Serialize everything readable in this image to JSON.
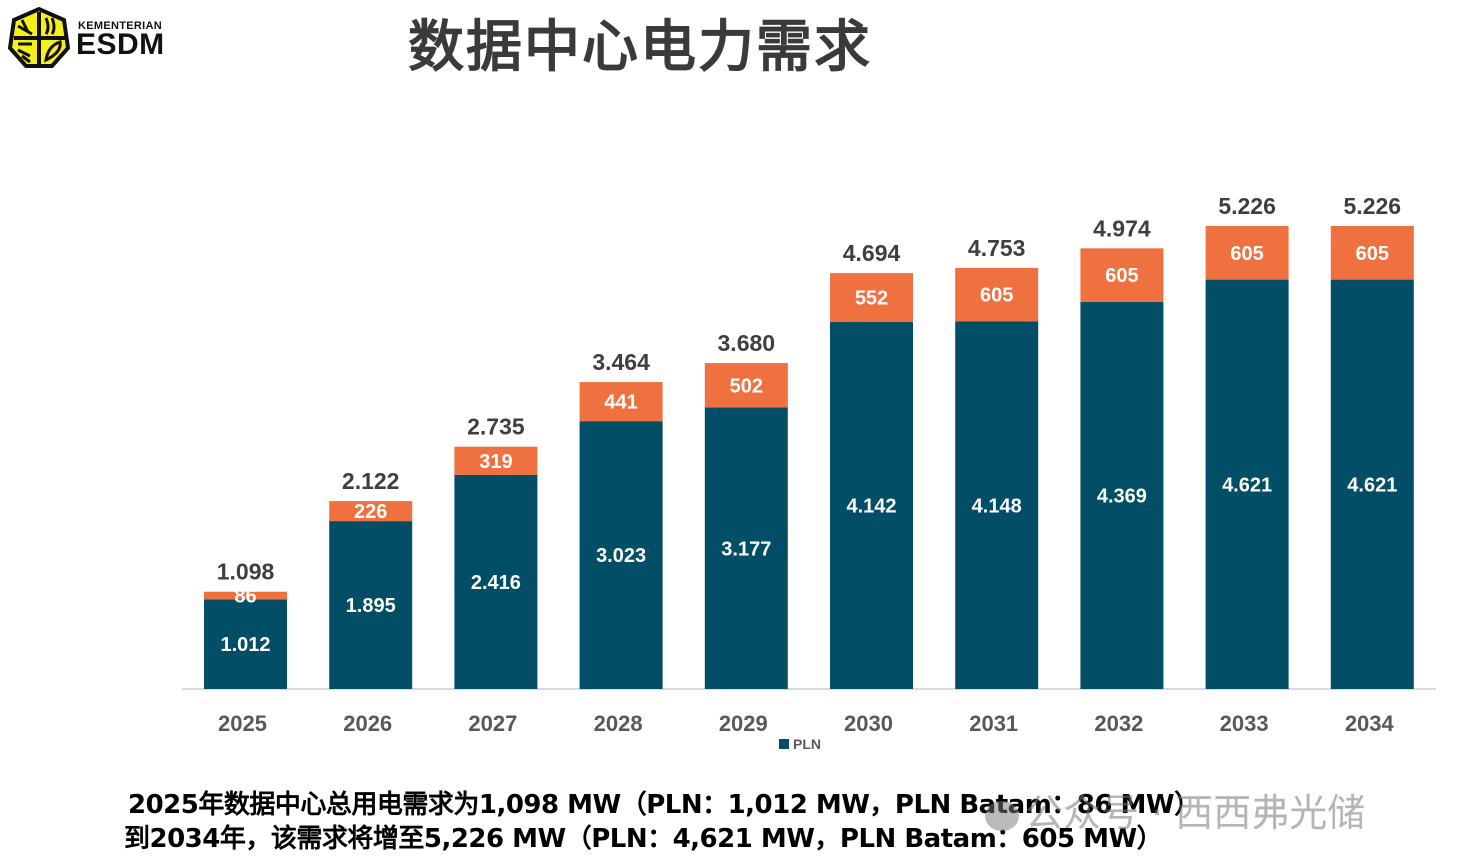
{
  "logo": {
    "line1": "KEMENTERIAN",
    "line2": "ESDM",
    "icon": "esdm-emblem-icon",
    "color": "#f5f01a"
  },
  "title": "数据中心电力需求",
  "chart_data": {
    "type": "bar",
    "stacked": true,
    "title": "数据中心电力需求",
    "xlabel": "",
    "ylabel": "",
    "categories": [
      "2025",
      "2026",
      "2027",
      "2028",
      "2029",
      "2030",
      "2031",
      "2032",
      "2033",
      "2034"
    ],
    "series": [
      {
        "name": "PLN",
        "color": "#034e67",
        "values": [
          1012,
          1895,
          2416,
          3023,
          3177,
          4142,
          4148,
          4369,
          4621,
          4621
        ],
        "labels": [
          "1.012",
          "1.895",
          "2.416",
          "3.023",
          "3.177",
          "4.142",
          "4.148",
          "4.369",
          "4.621",
          "4.621"
        ]
      },
      {
        "name": "PLN Batam",
        "color": "#ef7140",
        "values": [
          86,
          226,
          319,
          441,
          502,
          552,
          605,
          605,
          605,
          605
        ],
        "labels": [
          "86",
          "226",
          "319",
          "441",
          "502",
          "552",
          "605",
          "605",
          "605",
          "605"
        ]
      }
    ],
    "totals": [
      1098,
      2122,
      2735,
      3464,
      3680,
      4694,
      4753,
      4974,
      5226,
      5226
    ],
    "total_labels": [
      "1.098",
      "2.122",
      "2.735",
      "3.464",
      "3.680",
      "4.694",
      "4.753",
      "4.974",
      "5.226",
      "5.226"
    ],
    "ylim": [
      0,
      5226
    ],
    "grid": false,
    "legend": {
      "position": "bottom",
      "entries": [
        "PLN"
      ]
    }
  },
  "summary": {
    "line1": "2025年数据中心总用电需求为1,098 MW（PLN：1,012 MW，PLN Batam：86 MW）",
    "line2": "到2034年，该需求将增至5,226 MW（PLN：4,621 MW，PLN Batam：605 MW）"
  },
  "watermark": "公众号 · 西西弗光储"
}
